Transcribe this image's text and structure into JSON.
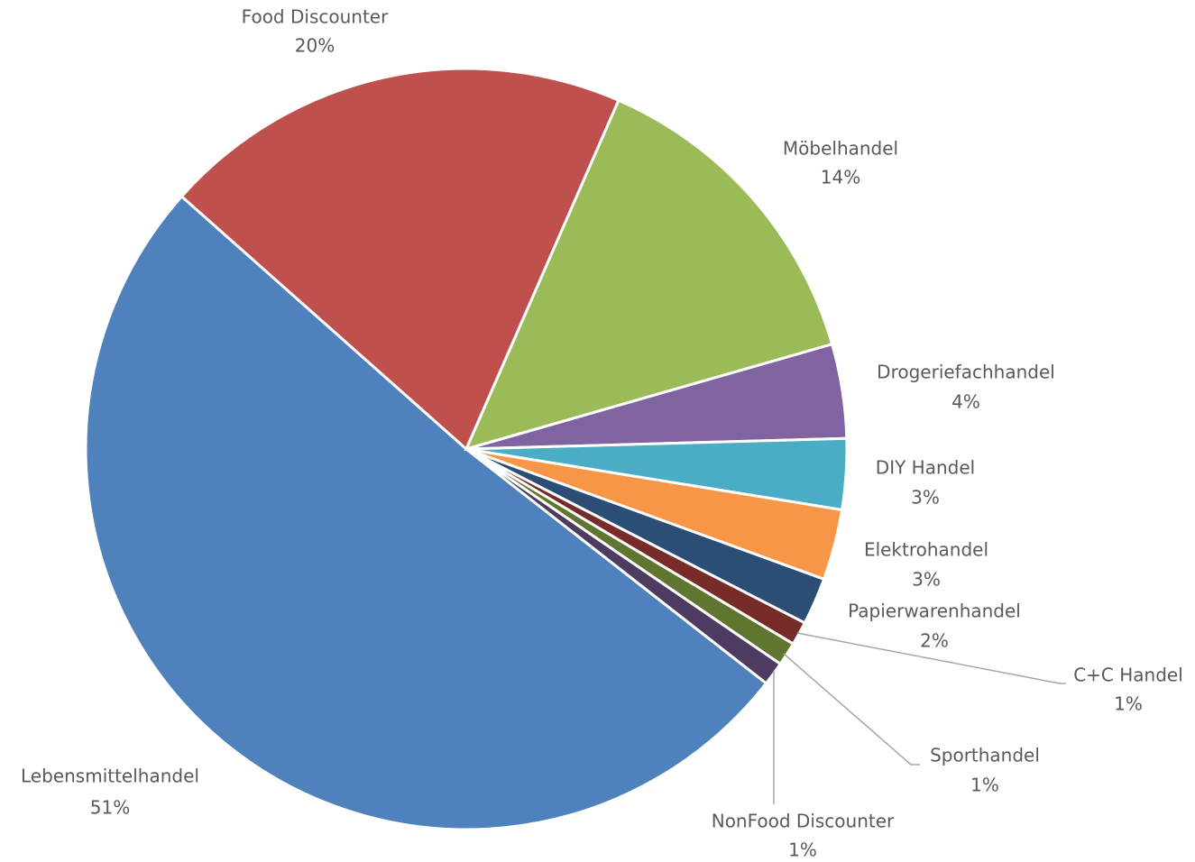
{
  "chart_data": {
    "type": "pie",
    "categories": [
      "Lebensmittelhandel",
      "Food Discounter",
      "Möbelhandel",
      "Drogeriefachhandel",
      "DIY Handel",
      "Elektrohandel",
      "Papierwarenhandel",
      "C+C Handel",
      "Sporthandel",
      "NonFood Discounter"
    ],
    "values": [
      51,
      20,
      14,
      4,
      3,
      3,
      2,
      1,
      1,
      1
    ],
    "value_labels": [
      "51%",
      "20%",
      "14%",
      "4%",
      "3%",
      "3%",
      "2%",
      "1%",
      "1%",
      "1%"
    ],
    "colors": [
      "#4f81bd",
      "#c0504d",
      "#9bbb59",
      "#8064a2",
      "#4bacc6",
      "#f79646",
      "#2c4d75",
      "#772c2a",
      "#5f7530",
      "#4d3b62"
    ]
  }
}
